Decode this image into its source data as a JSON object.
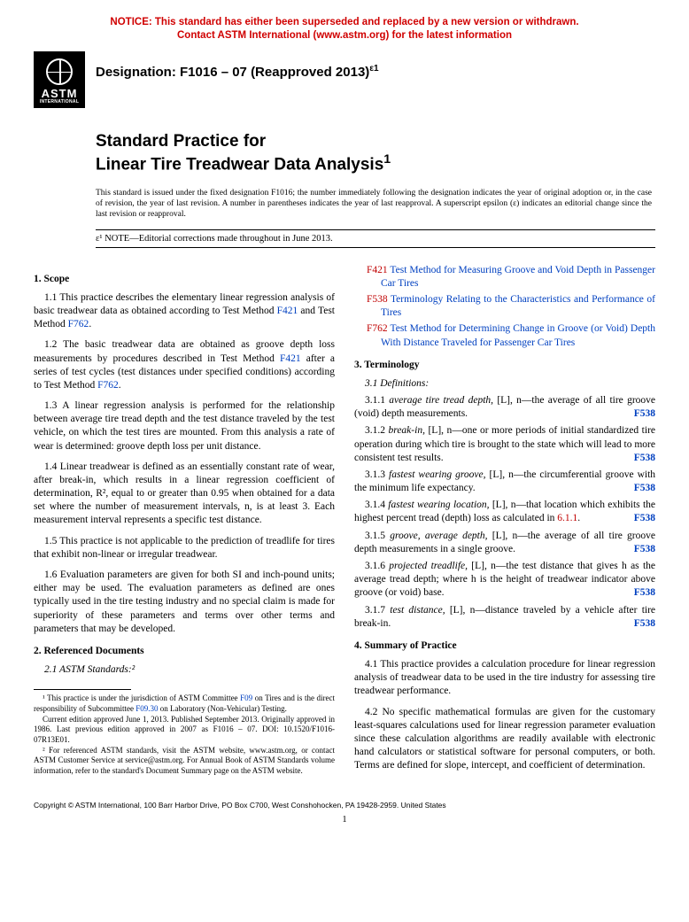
{
  "notice": {
    "line1": "NOTICE: This standard has either been superseded and replaced by a new version or withdrawn.",
    "line2": "Contact ASTM International (www.astm.org) for the latest information"
  },
  "logo": {
    "text1": "ASTM",
    "text2": "INTERNATIONAL"
  },
  "designation": {
    "label": "Designation: F1016 – 07 (Reapproved 2013)",
    "epsilon": "ε1"
  },
  "title": {
    "line1": "Standard Practice for",
    "line2": "Linear Tire Treadwear Data Analysis",
    "sup": "1"
  },
  "issuance": "This standard is issued under the fixed designation F1016; the number immediately following the designation indicates the year of original adoption or, in the case of revision, the year of last revision. A number in parentheses indicates the year of last reapproval. A superscript epsilon (ε) indicates an editorial change since the last revision or reapproval.",
  "ednote": {
    "prefix": "ε¹ ",
    "label": "NOTE",
    "text": "—Editorial corrections made throughout in June 2013."
  },
  "left": {
    "s1": {
      "head": "1. Scope"
    },
    "p11a": "1.1 This practice describes the elementary linear regression analysis of basic treadwear data as obtained according to Test Method ",
    "p11b": " and Test Method ",
    "p11c": ".",
    "link_f421": "F421",
    "link_f762": "F762",
    "p12a": "1.2 The basic treadwear data are obtained as groove depth loss measurements by procedures described in Test Method ",
    "p12b": " after a series of test cycles (test distances under specified conditions) according to Test Method ",
    "p12c": ".",
    "p13": "1.3 A linear regression analysis is performed for the relationship between average tire tread depth and the test distance traveled by the test vehicle, on which the test tires are mounted. From this analysis a rate of wear is determined: groove depth loss per unit distance.",
    "p14": "1.4 Linear treadwear is defined as an essentially constant rate of wear, after break-in, which results in a linear regression coefficient of determination, R², equal to or greater than 0.95 when obtained for a data set where the number of measurement intervals, n, is at least 3. Each measurement interval represents a specific test distance.",
    "p15": "1.5 This practice is not applicable to the prediction of treadlife for tires that exhibit non-linear or irregular treadwear.",
    "p16": "1.6 Evaluation parameters are given for both SI and inch-pound units; either may be used. The evaluation parameters as defined are ones typically used in the tire testing industry and no special claim is made for superiority of these parameters and terms over other terms and parameters that may be developed.",
    "s2": {
      "head": "2. Referenced Documents"
    },
    "p21": "2.1 ASTM Standards:²",
    "fn1a": "¹ This practice is under the jurisdiction of ASTM Committee ",
    "fn1_link1": "F09",
    "fn1b": " on Tires and is the direct responsibility of Subcommittee ",
    "fn1_link2": "F09.30",
    "fn1c": " on Laboratory (Non-Vehicular) Testing.",
    "fn1d": "Current edition approved June 1, 2013. Published September 2013. Originally approved in 1986. Last previous edition approved in 2007 as F1016 – 07. DOI: 10.1520/F1016-07R13E01.",
    "fn2": "² For referenced ASTM standards, visit the ASTM website, www.astm.org, or contact ASTM Customer Service at service@astm.org. For Annual Book of ASTM Standards volume information, refer to the standard's Document Summary page on the ASTM website."
  },
  "right": {
    "ref1": {
      "code": "F421",
      "text": " Test Method for Measuring Groove and Void Depth in Passenger Car Tires"
    },
    "ref2": {
      "code": "F538",
      "text": " Terminology Relating to the Characteristics and Performance of Tires"
    },
    "ref3": {
      "code": "F762",
      "text": " Test Method for Determining Change in Groove (or Void) Depth With Distance Traveled for Passenger Car Tires"
    },
    "s3": {
      "head": "3. Terminology"
    },
    "p31": "3.1 Definitions:",
    "t311": {
      "num": "3.1.1 ",
      "term": "average tire tread depth,",
      "ln": " [L], n",
      "def": "—the average of all tire groove (void) depth measurements.",
      "std": "F538"
    },
    "t312": {
      "num": "3.1.2 ",
      "term": "break-in,",
      "ln": " [L], n",
      "def": "—one or more periods of initial standardized tire operation during which tire is brought to the state which will lead to more consistent test results.",
      "std": "F538"
    },
    "t313": {
      "num": "3.1.3 ",
      "term": "fastest wearing groove,",
      "ln": " [L], n",
      "def": "—the circumferential groove with the minimum life expectancy.",
      "std": "F538"
    },
    "t314": {
      "num": "3.1.4 ",
      "term": "fastest wearing location,",
      "ln": " [L], n",
      "def": "—that location which exhibits the highest percent tread (depth) loss as calculated in ",
      "reflink": "6.1.1",
      "def2": ".",
      "std": "F538"
    },
    "t315": {
      "num": "3.1.5 ",
      "term": "groove, average depth,",
      "ln": " [L], n",
      "def": "—the average of all tire groove depth measurements in a single groove.",
      "std": "F538"
    },
    "t316": {
      "num": "3.1.6 ",
      "term": "projected treadlife,",
      "ln": " [L], n",
      "def": "—the test distance that gives h as the average tread depth; where h is the height of treadwear indicator above groove (or void) base.",
      "std": "F538"
    },
    "t317": {
      "num": "3.1.7 ",
      "term": "test distance,",
      "ln": " [L], n",
      "def": "—distance traveled by a vehicle after tire break-in.",
      "std": "F538"
    },
    "s4": {
      "head": "4. Summary of Practice"
    },
    "p41": "4.1 This practice provides a calculation procedure for linear regression analysis of treadwear data to be used in the tire industry for assessing tire treadwear performance.",
    "p42": "4.2 No specific mathematical formulas are given for the customary least-squares calculations used for linear regression parameter evaluation since these calculation algorithms are readily available with electronic hand calculators or statistical software for personal computers, or both. Terms are defined for slope, intercept, and coefficient of determination."
  },
  "copyright": "Copyright © ASTM International, 100 Barr Harbor Drive, PO Box C700, West Conshohocken, PA 19428-2959. United States",
  "pagenum": "1"
}
